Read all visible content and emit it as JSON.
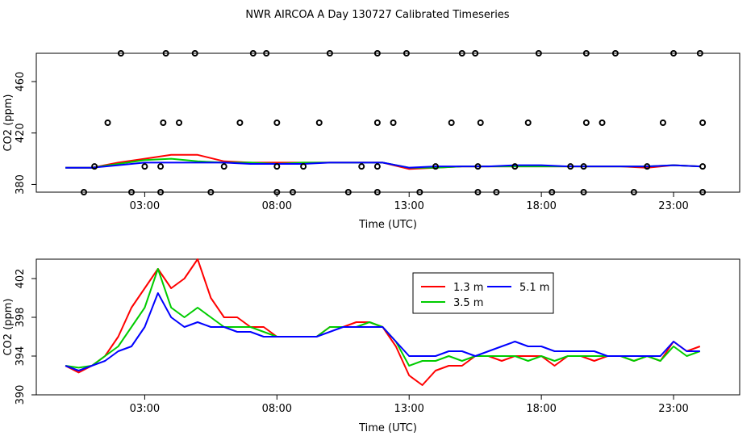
{
  "title": "NWR AIRCOA A  Day 130727  Calibrated Timeseries",
  "chart_data": [
    {
      "type": "line",
      "xlabel": "Time (UTC)",
      "ylabel": "CO2 (ppm)",
      "x_ticks": [
        {
          "label": "03:00",
          "value": 3
        },
        {
          "label": "08:00",
          "value": 8
        },
        {
          "label": "13:00",
          "value": 13
        },
        {
          "label": "18:00",
          "value": 18
        },
        {
          "label": "23:00",
          "value": 23
        }
      ],
      "y_ticks": [
        380,
        420,
        460
      ],
      "xlim": [
        -1.1,
        25.5
      ],
      "ylim": [
        374,
        482
      ],
      "grid": false,
      "calibration_points": [
        {
          "x": 0.7,
          "y": 374
        },
        {
          "x": 2.5,
          "y": 374
        },
        {
          "x": 3.6,
          "y": 374
        },
        {
          "x": 5.5,
          "y": 374
        },
        {
          "x": 8.0,
          "y": 374
        },
        {
          "x": 8.6,
          "y": 374
        },
        {
          "x": 10.7,
          "y": 374
        },
        {
          "x": 11.8,
          "y": 374
        },
        {
          "x": 13.4,
          "y": 374
        },
        {
          "x": 15.6,
          "y": 374
        },
        {
          "x": 16.3,
          "y": 374
        },
        {
          "x": 18.4,
          "y": 374
        },
        {
          "x": 19.6,
          "y": 374
        },
        {
          "x": 21.5,
          "y": 374
        },
        {
          "x": 24.1,
          "y": 374
        },
        {
          "x": 1.1,
          "y": 394
        },
        {
          "x": 3.0,
          "y": 394
        },
        {
          "x": 3.6,
          "y": 394
        },
        {
          "x": 6.0,
          "y": 394
        },
        {
          "x": 8.0,
          "y": 394
        },
        {
          "x": 9.0,
          "y": 394
        },
        {
          "x": 11.2,
          "y": 394
        },
        {
          "x": 11.8,
          "y": 394
        },
        {
          "x": 14.0,
          "y": 394
        },
        {
          "x": 15.6,
          "y": 394
        },
        {
          "x": 17.0,
          "y": 394
        },
        {
          "x": 19.1,
          "y": 394
        },
        {
          "x": 19.6,
          "y": 394
        },
        {
          "x": 22.0,
          "y": 394
        },
        {
          "x": 24.1,
          "y": 394
        },
        {
          "x": 1.6,
          "y": 428
        },
        {
          "x": 3.7,
          "y": 428
        },
        {
          "x": 4.3,
          "y": 428
        },
        {
          "x": 6.6,
          "y": 428
        },
        {
          "x": 8.0,
          "y": 428
        },
        {
          "x": 9.6,
          "y": 428
        },
        {
          "x": 11.8,
          "y": 428
        },
        {
          "x": 12.4,
          "y": 428
        },
        {
          "x": 14.6,
          "y": 428
        },
        {
          "x": 15.7,
          "y": 428
        },
        {
          "x": 17.5,
          "y": 428
        },
        {
          "x": 19.7,
          "y": 428
        },
        {
          "x": 20.3,
          "y": 428
        },
        {
          "x": 22.6,
          "y": 428
        },
        {
          "x": 24.1,
          "y": 428
        },
        {
          "x": 2.1,
          "y": 482
        },
        {
          "x": 3.8,
          "y": 482
        },
        {
          "x": 4.9,
          "y": 482
        },
        {
          "x": 7.1,
          "y": 482
        },
        {
          "x": 7.6,
          "y": 482
        },
        {
          "x": 10.0,
          "y": 482
        },
        {
          "x": 11.8,
          "y": 482
        },
        {
          "x": 12.9,
          "y": 482
        },
        {
          "x": 15.0,
          "y": 482
        },
        {
          "x": 15.5,
          "y": 482
        },
        {
          "x": 17.9,
          "y": 482
        },
        {
          "x": 19.7,
          "y": 482
        },
        {
          "x": 20.8,
          "y": 482
        },
        {
          "x": 23.0,
          "y": 482
        },
        {
          "x": 24.0,
          "y": 482
        }
      ],
      "series": [
        {
          "color": "#ff0000",
          "x": [
            0,
            1,
            2,
            3,
            4,
            5,
            6,
            7,
            8,
            9,
            10,
            11,
            12,
            13,
            14,
            15,
            16,
            17,
            18,
            19,
            20,
            21,
            22,
            23,
            24
          ],
          "values": [
            393,
            393,
            397,
            400,
            403,
            403,
            398,
            397,
            397,
            397,
            397,
            397,
            397,
            392,
            393,
            394,
            394,
            394,
            394,
            394,
            394,
            394,
            393,
            395,
            394
          ]
        },
        {
          "color": "#00cc00",
          "x": [
            0,
            1,
            2,
            3,
            4,
            5,
            6,
            7,
            8,
            9,
            10,
            11,
            12,
            13,
            14,
            15,
            16,
            17,
            18,
            19,
            20,
            21,
            22,
            23,
            24
          ],
          "values": [
            393,
            393,
            396,
            399,
            400,
            398,
            397,
            397,
            396,
            397,
            397,
            397,
            397,
            393,
            393,
            394,
            394,
            394,
            394,
            394,
            394,
            394,
            394,
            395,
            394
          ]
        },
        {
          "color": "#0000ff",
          "x": [
            0,
            1,
            2,
            3,
            4,
            5,
            6,
            7,
            8,
            9,
            10,
            11,
            12,
            13,
            14,
            15,
            16,
            17,
            18,
            19,
            20,
            21,
            22,
            23,
            24
          ],
          "values": [
            393,
            393,
            395,
            397,
            397,
            397,
            397,
            396,
            396,
            396,
            397,
            397,
            397,
            393,
            394,
            394,
            394,
            395,
            395,
            394,
            394,
            394,
            394,
            395,
            394
          ]
        }
      ]
    },
    {
      "type": "line",
      "xlabel": "Time (UTC)",
      "ylabel": "CO2 (ppm)",
      "x_ticks": [
        {
          "label": "03:00",
          "value": 3
        },
        {
          "label": "08:00",
          "value": 8
        },
        {
          "label": "13:00",
          "value": 13
        },
        {
          "label": "18:00",
          "value": 18
        },
        {
          "label": "23:00",
          "value": 23
        }
      ],
      "y_ticks": [
        390,
        394,
        398,
        402
      ],
      "xlim": [
        -1.1,
        25.5
      ],
      "ylim": [
        390,
        404
      ],
      "grid": false,
      "legend_position": "top-center",
      "series": [
        {
          "name": "1.3 m",
          "color": "#ff0000",
          "x": [
            0,
            0.5,
            1,
            1.5,
            2,
            2.5,
            3,
            3.5,
            4,
            4.5,
            5,
            5.5,
            6,
            6.5,
            7,
            7.5,
            8,
            8.5,
            9,
            9.5,
            10,
            10.5,
            11,
            11.5,
            12,
            12.5,
            13,
            13.5,
            14,
            14.5,
            15,
            15.5,
            16,
            16.5,
            17,
            17.5,
            18,
            18.5,
            19,
            19.5,
            20,
            20.5,
            21,
            21.5,
            22,
            22.5,
            23,
            23.5,
            24
          ],
          "values": [
            393,
            392.3,
            393,
            394,
            396,
            399,
            401,
            403,
            401,
            402,
            404,
            400,
            398,
            398,
            397,
            397,
            396,
            396,
            396,
            396,
            397,
            397,
            397.5,
            397.5,
            397,
            395,
            392,
            391,
            392.5,
            393,
            393,
            394,
            394,
            393.5,
            394,
            394,
            394,
            393,
            394,
            394,
            393.5,
            394,
            394,
            393.5,
            394,
            393.5,
            395.5,
            394.5,
            395
          ]
        },
        {
          "name": "3.5 m",
          "color": "#00cc00",
          "x": [
            0,
            0.5,
            1,
            1.5,
            2,
            2.5,
            3,
            3.5,
            4,
            4.5,
            5,
            5.5,
            6,
            6.5,
            7,
            7.5,
            8,
            8.5,
            9,
            9.5,
            10,
            10.5,
            11,
            11.5,
            12,
            12.5,
            13,
            13.5,
            14,
            14.5,
            15,
            15.5,
            16,
            16.5,
            17,
            17.5,
            18,
            18.5,
            19,
            19.5,
            20,
            20.5,
            21,
            21.5,
            22,
            22.5,
            23,
            23.5,
            24
          ],
          "values": [
            393,
            392.8,
            393,
            394,
            395,
            397,
            399,
            403,
            399,
            398,
            399,
            398,
            397,
            397,
            397,
            396.5,
            396,
            396,
            396,
            396,
            397,
            397,
            397,
            397.5,
            397,
            395.5,
            393,
            393.5,
            393.5,
            394,
            393.5,
            394,
            394,
            394,
            394,
            393.5,
            394,
            393.5,
            394,
            394,
            394,
            394,
            394,
            393.5,
            394,
            393.5,
            395,
            394,
            394.5
          ]
        },
        {
          "name": "5.1 m",
          "color": "#0000ff",
          "x": [
            0,
            0.5,
            1,
            1.5,
            2,
            2.5,
            3,
            3.5,
            4,
            4.5,
            5,
            5.5,
            6,
            6.5,
            7,
            7.5,
            8,
            8.5,
            9,
            9.5,
            10,
            10.5,
            11,
            11.5,
            12,
            12.5,
            13,
            13.5,
            14,
            14.5,
            15,
            15.5,
            16,
            16.5,
            17,
            17.5,
            18,
            18.5,
            19,
            19.5,
            20,
            20.5,
            21,
            21.5,
            22,
            22.5,
            23,
            23.5,
            24
          ],
          "values": [
            393,
            392.5,
            393,
            393.5,
            394.5,
            395,
            397,
            400.5,
            398,
            397,
            397.5,
            397,
            397,
            396.5,
            396.5,
            396,
            396,
            396,
            396,
            396,
            396.5,
            397,
            397,
            397,
            397,
            395.5,
            394,
            394,
            394,
            394.5,
            394.5,
            394,
            394.5,
            395,
            395.5,
            395,
            395,
            394.5,
            394.5,
            394.5,
            394.5,
            394,
            394,
            394,
            394,
            394,
            395.5,
            394.5,
            394.5
          ]
        }
      ]
    }
  ]
}
